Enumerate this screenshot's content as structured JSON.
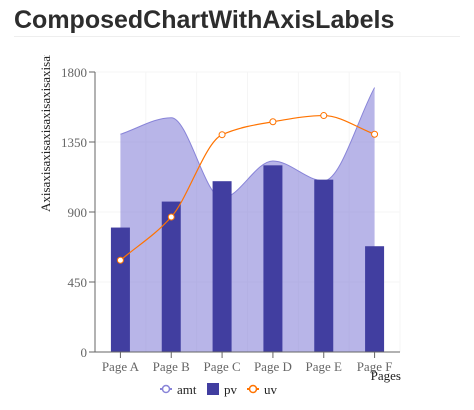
{
  "page": {
    "title": "ComposedChartWithAxisLabels"
  },
  "chart_data": {
    "type": "composed",
    "categories": [
      "Page A",
      "Page B",
      "Page C",
      "Page D",
      "Page E",
      "Page F"
    ],
    "series": [
      {
        "name": "amt",
        "kind": "area",
        "color": "#8884d8",
        "values": [
          1400,
          1506,
          989,
          1228,
          1100,
          1700
        ]
      },
      {
        "name": "pv",
        "kind": "bar",
        "color": "#413ea0",
        "values": [
          800,
          967,
          1098,
          1200,
          1108,
          680
        ]
      },
      {
        "name": "uv",
        "kind": "line",
        "color": "#ff7300",
        "values": [
          590,
          868,
          1397,
          1480,
          1520,
          1400
        ]
      }
    ],
    "xlabel": "Pages",
    "ylabel": "Axisaxisaxisaxisaxisaxisaxisaxisaxisaxisaxisaxisaxisaxisaxisaxis",
    "y_ticks": [
      "0",
      "450",
      "900",
      "1350",
      "1800"
    ],
    "ylim": [
      0,
      1800
    ],
    "grid": true,
    "legend": {
      "placement": "bottom",
      "items": [
        "amt",
        "pv",
        "uv"
      ]
    }
  }
}
